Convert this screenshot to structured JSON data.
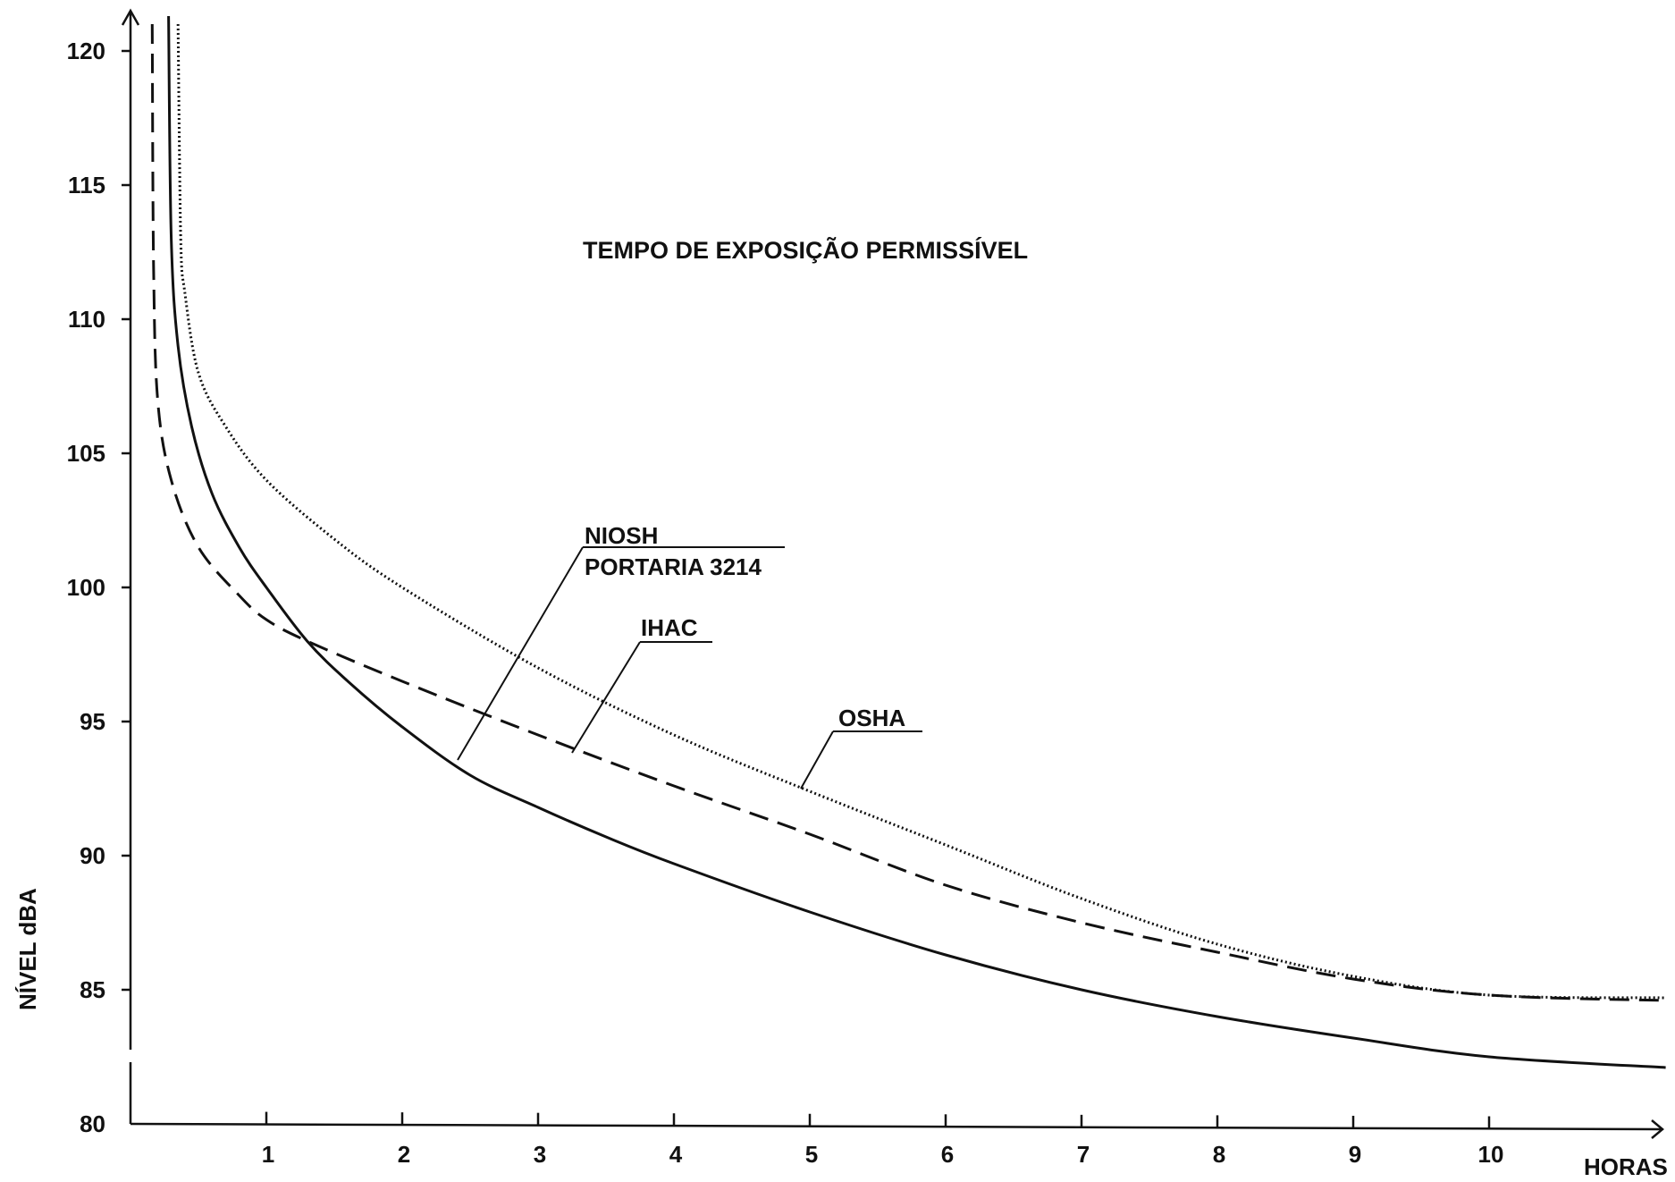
{
  "chart_data": {
    "type": "line",
    "title": "TEMPO DE EXPOSIÇÃO PERMISSÍVEL",
    "xlabel": "HORAS",
    "ylabel": "NÍVEL dBA",
    "xlim": [
      0,
      11.3
    ],
    "ylim": [
      80,
      121.5
    ],
    "x_ticks": [
      1,
      2,
      3,
      4,
      5,
      6,
      7,
      8,
      9,
      10
    ],
    "x_tick_labels": [
      "1",
      "2",
      "3",
      "4",
      "5",
      "6",
      "7",
      "8",
      "9",
      "10"
    ],
    "y_ticks": [
      80,
      85,
      90,
      95,
      100,
      105,
      110,
      115,
      120
    ],
    "y_tick_labels": [
      "80",
      "85",
      "90",
      "95",
      "100",
      "105",
      "110",
      "115",
      "120"
    ],
    "grid": false,
    "series": [
      {
        "name": "NIOSH PORTARIA 3214",
        "style": "solid",
        "x": [
          0.28,
          0.3,
          0.35,
          0.45,
          0.6,
          0.8,
          1.0,
          1.3,
          1.6,
          2.0,
          2.5,
          3.0,
          3.5,
          4.0,
          5.0,
          6.0,
          7.0,
          8.0,
          9.0,
          10.0,
          11.3
        ],
        "y": [
          121.3,
          113.0,
          109.0,
          106.0,
          103.5,
          101.5,
          100.0,
          98.0,
          96.5,
          94.8,
          93.0,
          91.8,
          90.7,
          89.7,
          87.9,
          86.3,
          85.0,
          84.0,
          83.2,
          82.5,
          82.1
        ]
      },
      {
        "name": "IHAC",
        "style": "dashed",
        "x": [
          0.16,
          0.17,
          0.2,
          0.3,
          0.5,
          0.8,
          1.0,
          1.3,
          2.0,
          3.0,
          4.0,
          5.0,
          6.0,
          7.0,
          8.0,
          9.0,
          10.0,
          11.3
        ],
        "y": [
          121.0,
          112.0,
          107.0,
          104.0,
          101.5,
          99.7,
          98.8,
          98.0,
          96.5,
          94.5,
          92.6,
          90.8,
          88.9,
          87.5,
          86.4,
          85.4,
          84.8,
          84.6
        ]
      },
      {
        "name": "OSHA",
        "style": "dotted",
        "x": [
          0.35,
          0.37,
          0.4,
          0.5,
          0.7,
          1.0,
          1.5,
          2.0,
          3.0,
          4.0,
          5.0,
          6.0,
          7.0,
          8.0,
          9.0,
          10.0,
          11.3
        ],
        "y": [
          121.0,
          113.0,
          111.0,
          108.0,
          106.0,
          104.0,
          101.8,
          100.0,
          97.0,
          94.5,
          92.4,
          90.4,
          88.4,
          86.7,
          85.5,
          84.8,
          84.7
        ]
      }
    ],
    "annotations": {
      "niosh_line1": "NIOSH",
      "niosh_line2": "PORTARIA 3214",
      "ihac": "IHAC",
      "osha": "OSHA"
    }
  }
}
